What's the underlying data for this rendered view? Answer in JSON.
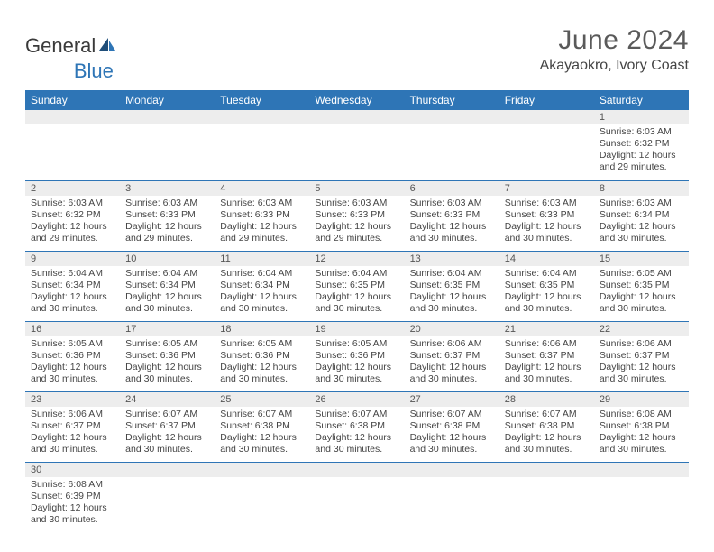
{
  "colors": {
    "header_bg": "#2e75b6",
    "header_text": "#ffffff",
    "daynum_bg": "#ededed",
    "cell_border": "#2e75b6",
    "body_text": "#444444",
    "title_text": "#5a5a5a",
    "logo_gray": "#3a3a3a",
    "logo_blue": "#2e75b6"
  },
  "typography": {
    "title_fontsize": 30,
    "location_fontsize": 16,
    "header_fontsize": 12,
    "daynum_fontsize": 11,
    "cell_fontsize": 10.5
  },
  "logo": {
    "part1": "General",
    "part2": "Blue"
  },
  "title": "June 2024",
  "location": "Akayaokro, Ivory Coast",
  "day_headers": [
    "Sunday",
    "Monday",
    "Tuesday",
    "Wednesday",
    "Thursday",
    "Friday",
    "Saturday"
  ],
  "weeks": [
    [
      {
        "day": "",
        "lines": [
          "",
          "",
          "",
          ""
        ]
      },
      {
        "day": "",
        "lines": [
          "",
          "",
          "",
          ""
        ]
      },
      {
        "day": "",
        "lines": [
          "",
          "",
          "",
          ""
        ]
      },
      {
        "day": "",
        "lines": [
          "",
          "",
          "",
          ""
        ]
      },
      {
        "day": "",
        "lines": [
          "",
          "",
          "",
          ""
        ]
      },
      {
        "day": "",
        "lines": [
          "",
          "",
          "",
          ""
        ]
      },
      {
        "day": "1",
        "lines": [
          "Sunrise: 6:03 AM",
          "Sunset: 6:32 PM",
          "Daylight: 12 hours",
          "and 29 minutes."
        ]
      }
    ],
    [
      {
        "day": "2",
        "lines": [
          "Sunrise: 6:03 AM",
          "Sunset: 6:32 PM",
          "Daylight: 12 hours",
          "and 29 minutes."
        ]
      },
      {
        "day": "3",
        "lines": [
          "Sunrise: 6:03 AM",
          "Sunset: 6:33 PM",
          "Daylight: 12 hours",
          "and 29 minutes."
        ]
      },
      {
        "day": "4",
        "lines": [
          "Sunrise: 6:03 AM",
          "Sunset: 6:33 PM",
          "Daylight: 12 hours",
          "and 29 minutes."
        ]
      },
      {
        "day": "5",
        "lines": [
          "Sunrise: 6:03 AM",
          "Sunset: 6:33 PM",
          "Daylight: 12 hours",
          "and 29 minutes."
        ]
      },
      {
        "day": "6",
        "lines": [
          "Sunrise: 6:03 AM",
          "Sunset: 6:33 PM",
          "Daylight: 12 hours",
          "and 30 minutes."
        ]
      },
      {
        "day": "7",
        "lines": [
          "Sunrise: 6:03 AM",
          "Sunset: 6:33 PM",
          "Daylight: 12 hours",
          "and 30 minutes."
        ]
      },
      {
        "day": "8",
        "lines": [
          "Sunrise: 6:03 AM",
          "Sunset: 6:34 PM",
          "Daylight: 12 hours",
          "and 30 minutes."
        ]
      }
    ],
    [
      {
        "day": "9",
        "lines": [
          "Sunrise: 6:04 AM",
          "Sunset: 6:34 PM",
          "Daylight: 12 hours",
          "and 30 minutes."
        ]
      },
      {
        "day": "10",
        "lines": [
          "Sunrise: 6:04 AM",
          "Sunset: 6:34 PM",
          "Daylight: 12 hours",
          "and 30 minutes."
        ]
      },
      {
        "day": "11",
        "lines": [
          "Sunrise: 6:04 AM",
          "Sunset: 6:34 PM",
          "Daylight: 12 hours",
          "and 30 minutes."
        ]
      },
      {
        "day": "12",
        "lines": [
          "Sunrise: 6:04 AM",
          "Sunset: 6:35 PM",
          "Daylight: 12 hours",
          "and 30 minutes."
        ]
      },
      {
        "day": "13",
        "lines": [
          "Sunrise: 6:04 AM",
          "Sunset: 6:35 PM",
          "Daylight: 12 hours",
          "and 30 minutes."
        ]
      },
      {
        "day": "14",
        "lines": [
          "Sunrise: 6:04 AM",
          "Sunset: 6:35 PM",
          "Daylight: 12 hours",
          "and 30 minutes."
        ]
      },
      {
        "day": "15",
        "lines": [
          "Sunrise: 6:05 AM",
          "Sunset: 6:35 PM",
          "Daylight: 12 hours",
          "and 30 minutes."
        ]
      }
    ],
    [
      {
        "day": "16",
        "lines": [
          "Sunrise: 6:05 AM",
          "Sunset: 6:36 PM",
          "Daylight: 12 hours",
          "and 30 minutes."
        ]
      },
      {
        "day": "17",
        "lines": [
          "Sunrise: 6:05 AM",
          "Sunset: 6:36 PM",
          "Daylight: 12 hours",
          "and 30 minutes."
        ]
      },
      {
        "day": "18",
        "lines": [
          "Sunrise: 6:05 AM",
          "Sunset: 6:36 PM",
          "Daylight: 12 hours",
          "and 30 minutes."
        ]
      },
      {
        "day": "19",
        "lines": [
          "Sunrise: 6:05 AM",
          "Sunset: 6:36 PM",
          "Daylight: 12 hours",
          "and 30 minutes."
        ]
      },
      {
        "day": "20",
        "lines": [
          "Sunrise: 6:06 AM",
          "Sunset: 6:37 PM",
          "Daylight: 12 hours",
          "and 30 minutes."
        ]
      },
      {
        "day": "21",
        "lines": [
          "Sunrise: 6:06 AM",
          "Sunset: 6:37 PM",
          "Daylight: 12 hours",
          "and 30 minutes."
        ]
      },
      {
        "day": "22",
        "lines": [
          "Sunrise: 6:06 AM",
          "Sunset: 6:37 PM",
          "Daylight: 12 hours",
          "and 30 minutes."
        ]
      }
    ],
    [
      {
        "day": "23",
        "lines": [
          "Sunrise: 6:06 AM",
          "Sunset: 6:37 PM",
          "Daylight: 12 hours",
          "and 30 minutes."
        ]
      },
      {
        "day": "24",
        "lines": [
          "Sunrise: 6:07 AM",
          "Sunset: 6:37 PM",
          "Daylight: 12 hours",
          "and 30 minutes."
        ]
      },
      {
        "day": "25",
        "lines": [
          "Sunrise: 6:07 AM",
          "Sunset: 6:38 PM",
          "Daylight: 12 hours",
          "and 30 minutes."
        ]
      },
      {
        "day": "26",
        "lines": [
          "Sunrise: 6:07 AM",
          "Sunset: 6:38 PM",
          "Daylight: 12 hours",
          "and 30 minutes."
        ]
      },
      {
        "day": "27",
        "lines": [
          "Sunrise: 6:07 AM",
          "Sunset: 6:38 PM",
          "Daylight: 12 hours",
          "and 30 minutes."
        ]
      },
      {
        "day": "28",
        "lines": [
          "Sunrise: 6:07 AM",
          "Sunset: 6:38 PM",
          "Daylight: 12 hours",
          "and 30 minutes."
        ]
      },
      {
        "day": "29",
        "lines": [
          "Sunrise: 6:08 AM",
          "Sunset: 6:38 PM",
          "Daylight: 12 hours",
          "and 30 minutes."
        ]
      }
    ],
    [
      {
        "day": "30",
        "lines": [
          "Sunrise: 6:08 AM",
          "Sunset: 6:39 PM",
          "Daylight: 12 hours",
          "and 30 minutes."
        ]
      },
      {
        "day": "",
        "lines": [
          "",
          "",
          "",
          ""
        ]
      },
      {
        "day": "",
        "lines": [
          "",
          "",
          "",
          ""
        ]
      },
      {
        "day": "",
        "lines": [
          "",
          "",
          "",
          ""
        ]
      },
      {
        "day": "",
        "lines": [
          "",
          "",
          "",
          ""
        ]
      },
      {
        "day": "",
        "lines": [
          "",
          "",
          "",
          ""
        ]
      },
      {
        "day": "",
        "lines": [
          "",
          "",
          "",
          ""
        ]
      }
    ]
  ]
}
